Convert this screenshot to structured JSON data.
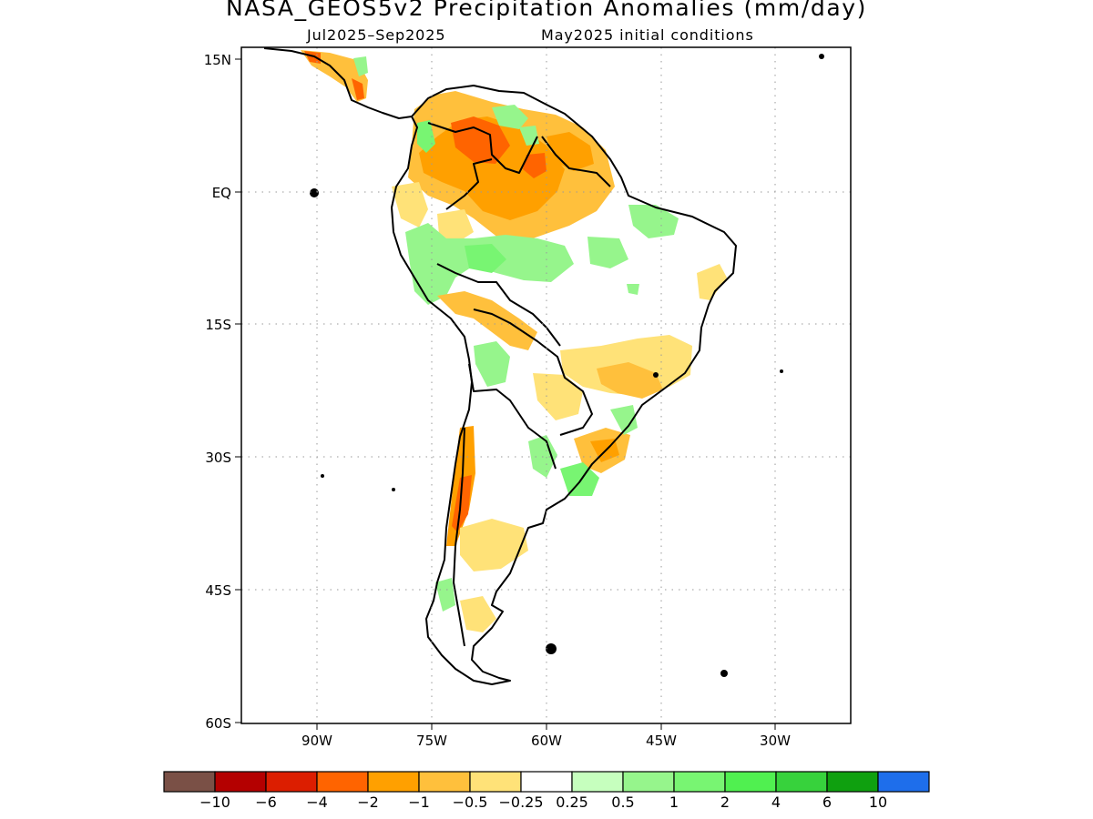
{
  "title": "NASA_GEOS5v2 Precipitation Anomalies (mm/day)",
  "subtitle_left": "Jul2025–Sep2025",
  "subtitle_right": "May2025 initial conditions",
  "axes": {
    "lon_ticks": [
      "90W",
      "75W",
      "60W",
      "45W",
      "30W"
    ],
    "lat_ticks": [
      "15N",
      "EQ",
      "15S",
      "30S",
      "45S",
      "60S"
    ]
  },
  "colorbar": {
    "colors": [
      "#7a5046",
      "#b40000",
      "#dc1e00",
      "#ff6400",
      "#ffa000",
      "#ffc03c",
      "#ffe278",
      "#ffffff",
      "#c6ffbe",
      "#96f58c",
      "#78f572",
      "#50f050",
      "#37d23c",
      "#0fa00f",
      "#1e6eeb"
    ],
    "labels": [
      "−10",
      "−6",
      "−4",
      "−2",
      "−1",
      "−0.5",
      "−0.25",
      "0.25",
      "0.5",
      "1",
      "2",
      "4",
      "6",
      "10"
    ]
  },
  "regions": {
    "label": "South America",
    "palette": {
      "orange_dark": "#ff6400",
      "orange": "#ffa000",
      "amber": "#ffc03c",
      "yellow": "#ffe278",
      "green_light": "#96f58c",
      "green": "#78f572",
      "red": "#dc1e00"
    }
  }
}
